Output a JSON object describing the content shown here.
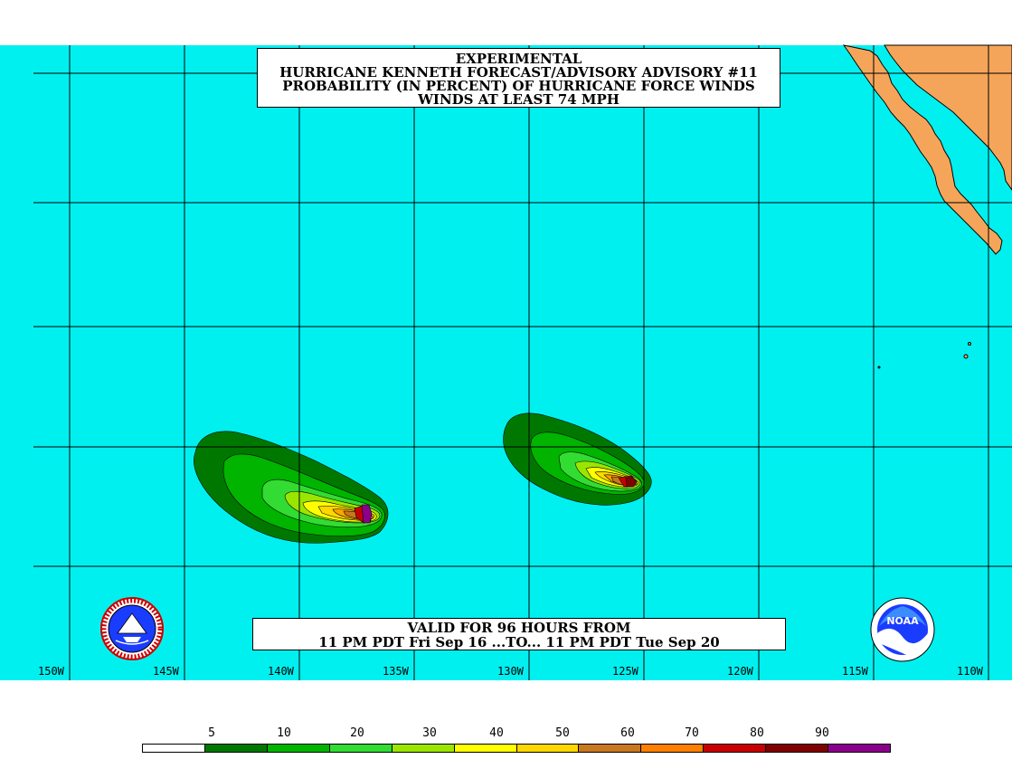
{
  "title": {
    "line1": "EXPERIMENTAL",
    "line2": "HURRICANE KENNETH FORECAST/ADVISORY ADVISORY #11",
    "line3": "PROBABILITY (IN PERCENT) OF HURRICANE FORCE WINDS",
    "line4": "WINDS AT LEAST 74 MPH"
  },
  "valid": {
    "line1": "VALID FOR 96 HOURS FROM",
    "line2": "11 PM PDT Fri Sep 16 ...TO... 11 PM PDT Tue Sep 20"
  },
  "longitude_labels": [
    "150W",
    "145W",
    "140W",
    "135W",
    "130W",
    "125W",
    "120W",
    "115W",
    "110W"
  ],
  "legend": {
    "values": [
      "5",
      "10",
      "20",
      "30",
      "40",
      "50",
      "60",
      "70",
      "80",
      "90"
    ],
    "colors": [
      "#ffffff",
      "#007800",
      "#00b400",
      "#32dc32",
      "#9be600",
      "#ffff00",
      "#ffd700",
      "#ffa500",
      "#c8781e",
      "#ff7f00",
      "#c80000",
      "#800000",
      "#8b008b"
    ]
  },
  "colors": {
    "ocean": "#00f0f0",
    "land": "#f5a55a",
    "grid": "#000000"
  },
  "logos": {
    "left": "national-weather-service-logo",
    "right": "noaa-logo",
    "noaa_text": "NOAA"
  }
}
